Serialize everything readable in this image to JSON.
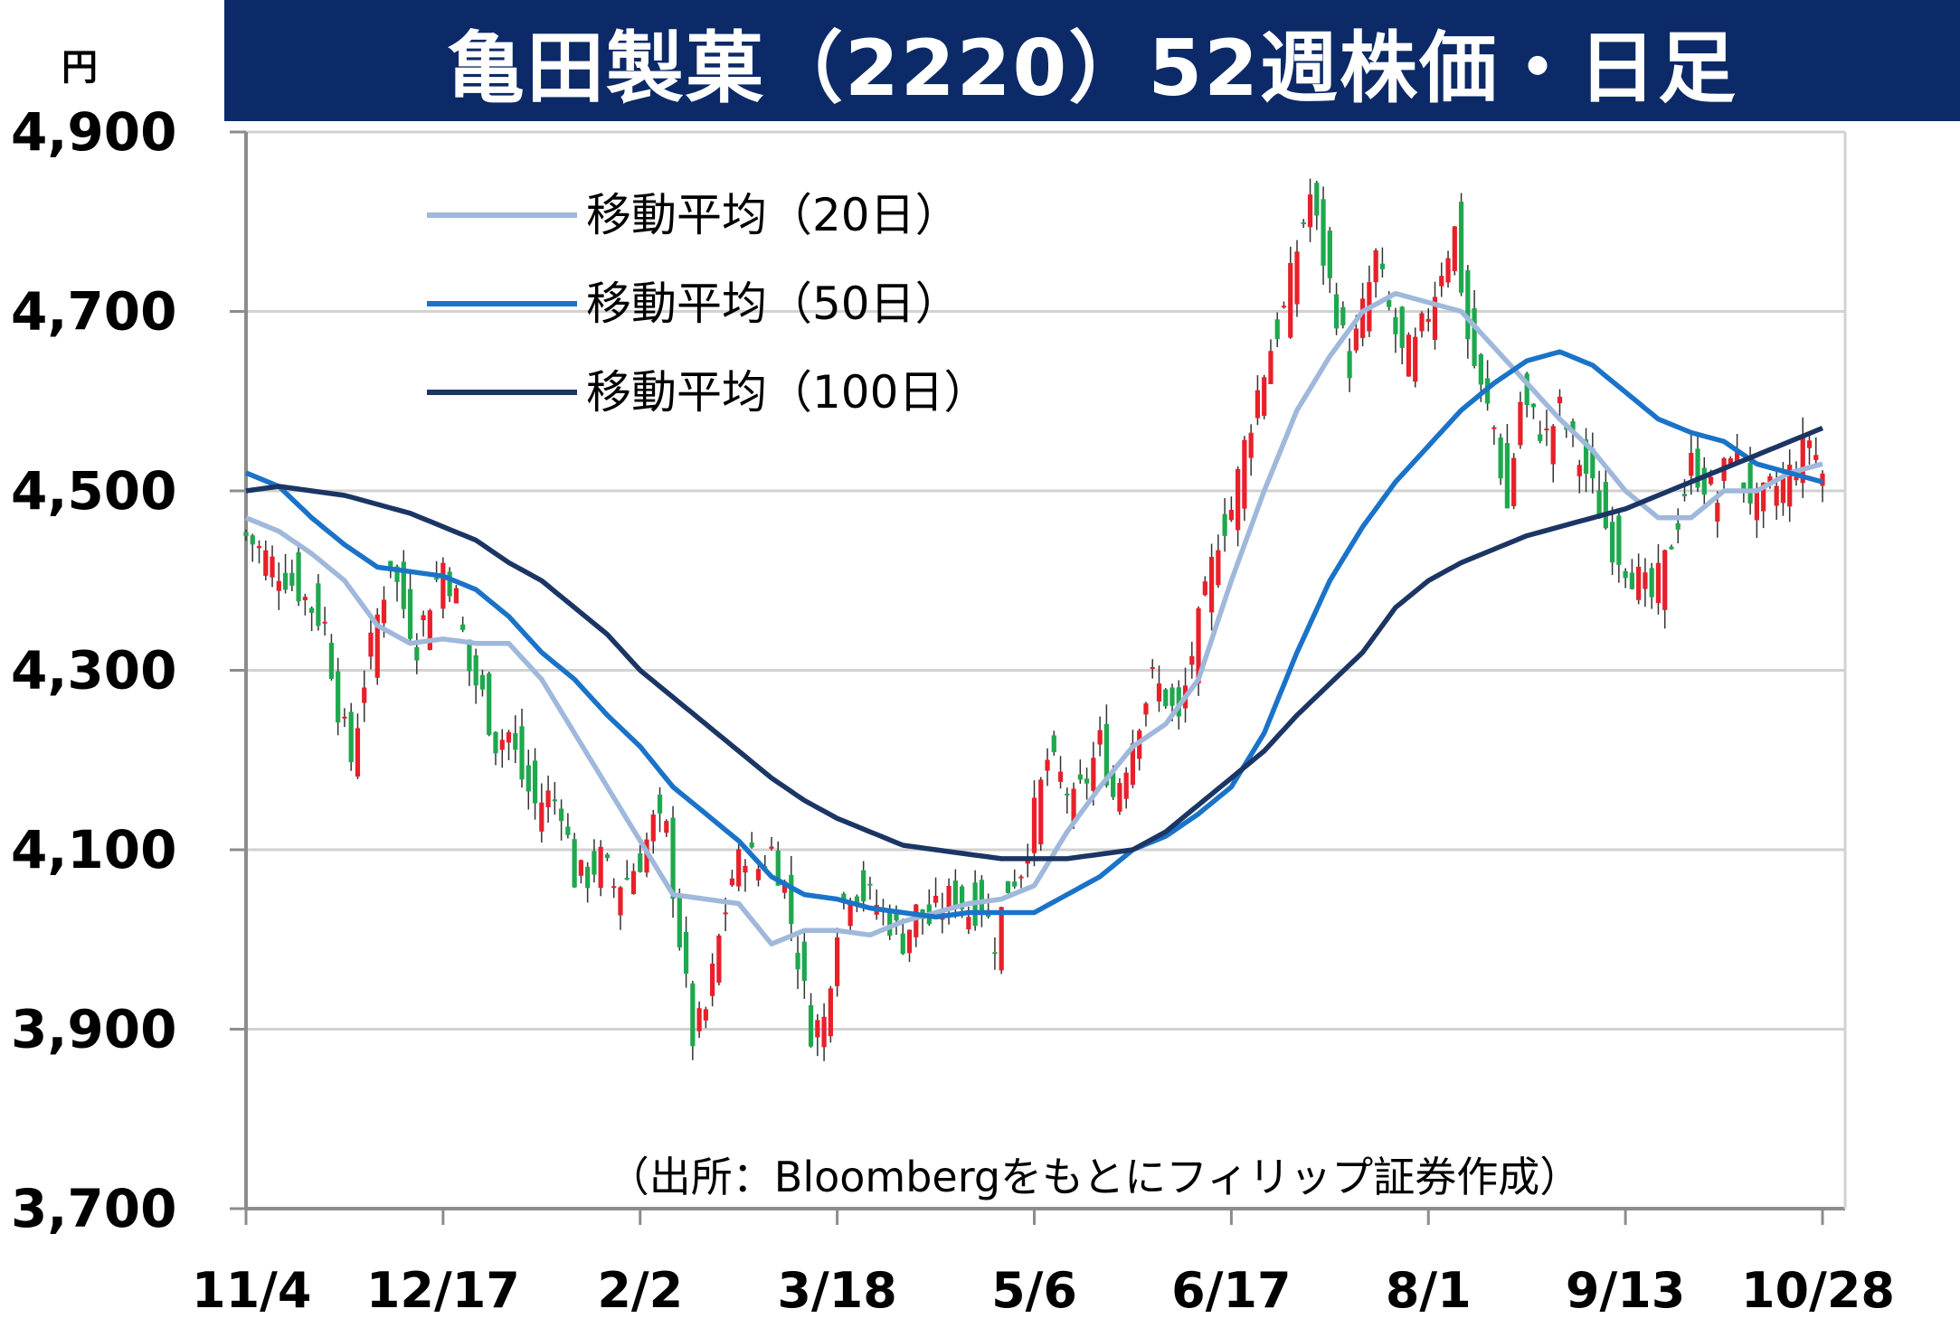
{
  "title": "亀田製菓（2220）52週株価・日足",
  "chart_data": {
    "type": "candlestick",
    "title": "亀田製菓（2220）52週株価・日足",
    "yunit": "円",
    "ylim": [
      3700,
      4900
    ],
    "yticks": [
      "3,700",
      "3,900",
      "4,100",
      "4,300",
      "4,500",
      "4,700",
      "4,900"
    ],
    "ytick_values": [
      3700,
      3900,
      4100,
      4300,
      4500,
      4700,
      4900
    ],
    "xticks": [
      "11/4",
      "12/17",
      "2/2",
      "3/18",
      "5/6",
      "6/17",
      "8/1",
      "9/13",
      "10/28"
    ],
    "xtick_index": [
      0,
      30,
      60,
      90,
      120,
      150,
      180,
      210,
      240
    ],
    "n_days": 241,
    "grid": true,
    "up_color": "#e8202a",
    "down_color": "#1ea84e",
    "legend_position": "top-left",
    "series": [
      {
        "name": "移動平均（20日）",
        "color": "#9fb8db",
        "anchors": [
          [
            0,
            4470
          ],
          [
            5,
            4455
          ],
          [
            10,
            4430
          ],
          [
            15,
            4400
          ],
          [
            20,
            4350
          ],
          [
            25,
            4330
          ],
          [
            30,
            4335
          ],
          [
            35,
            4330
          ],
          [
            40,
            4330
          ],
          [
            45,
            4290
          ],
          [
            50,
            4230
          ],
          [
            55,
            4170
          ],
          [
            60,
            4110
          ],
          [
            65,
            4050
          ],
          [
            70,
            4045
          ],
          [
            75,
            4040
          ],
          [
            80,
            3995
          ],
          [
            85,
            4010
          ],
          [
            90,
            4010
          ],
          [
            95,
            4005
          ],
          [
            100,
            4020
          ],
          [
            105,
            4030
          ],
          [
            110,
            4040
          ],
          [
            115,
            4045
          ],
          [
            120,
            4060
          ],
          [
            125,
            4120
          ],
          [
            130,
            4170
          ],
          [
            135,
            4215
          ],
          [
            140,
            4240
          ],
          [
            145,
            4290
          ],
          [
            150,
            4400
          ],
          [
            155,
            4500
          ],
          [
            160,
            4590
          ],
          [
            165,
            4650
          ],
          [
            170,
            4700
          ],
          [
            175,
            4720
          ],
          [
            180,
            4710
          ],
          [
            185,
            4700
          ],
          [
            190,
            4660
          ],
          [
            195,
            4620
          ],
          [
            200,
            4580
          ],
          [
            205,
            4545
          ],
          [
            210,
            4500
          ],
          [
            215,
            4470
          ],
          [
            220,
            4470
          ],
          [
            225,
            4500
          ],
          [
            230,
            4500
          ],
          [
            235,
            4520
          ],
          [
            240,
            4530
          ]
        ]
      },
      {
        "name": "移動平均（50日）",
        "color": "#1a73c8",
        "anchors": [
          [
            0,
            4520
          ],
          [
            5,
            4505
          ],
          [
            10,
            4470
          ],
          [
            15,
            4440
          ],
          [
            20,
            4415
          ],
          [
            25,
            4410
          ],
          [
            30,
            4405
          ],
          [
            35,
            4390
          ],
          [
            40,
            4360
          ],
          [
            45,
            4320
          ],
          [
            50,
            4290
          ],
          [
            55,
            4250
          ],
          [
            60,
            4215
          ],
          [
            65,
            4170
          ],
          [
            70,
            4140
          ],
          [
            75,
            4110
          ],
          [
            80,
            4070
          ],
          [
            85,
            4050
          ],
          [
            90,
            4045
          ],
          [
            95,
            4035
          ],
          [
            100,
            4030
          ],
          [
            105,
            4025
          ],
          [
            110,
            4030
          ],
          [
            115,
            4030
          ],
          [
            120,
            4030
          ],
          [
            125,
            4050
          ],
          [
            130,
            4070
          ],
          [
            135,
            4100
          ],
          [
            140,
            4115
          ],
          [
            145,
            4140
          ],
          [
            150,
            4170
          ],
          [
            155,
            4230
          ],
          [
            160,
            4320
          ],
          [
            165,
            4400
          ],
          [
            170,
            4460
          ],
          [
            175,
            4510
          ],
          [
            180,
            4550
          ],
          [
            185,
            4590
          ],
          [
            190,
            4620
          ],
          [
            195,
            4645
          ],
          [
            200,
            4655
          ],
          [
            205,
            4640
          ],
          [
            210,
            4610
          ],
          [
            215,
            4580
          ],
          [
            220,
            4565
          ],
          [
            225,
            4555
          ],
          [
            230,
            4530
          ],
          [
            235,
            4520
          ],
          [
            240,
            4510
          ]
        ]
      },
      {
        "name": "移動平均（100日）",
        "color": "#1b3564",
        "anchors": [
          [
            0,
            4500
          ],
          [
            5,
            4505
          ],
          [
            10,
            4500
          ],
          [
            15,
            4495
          ],
          [
            20,
            4485
          ],
          [
            25,
            4475
          ],
          [
            30,
            4460
          ],
          [
            35,
            4445
          ],
          [
            40,
            4420
          ],
          [
            45,
            4400
          ],
          [
            50,
            4370
          ],
          [
            55,
            4340
          ],
          [
            60,
            4300
          ],
          [
            65,
            4270
          ],
          [
            70,
            4240
          ],
          [
            75,
            4210
          ],
          [
            80,
            4180
          ],
          [
            85,
            4155
          ],
          [
            90,
            4135
          ],
          [
            95,
            4120
          ],
          [
            100,
            4105
          ],
          [
            105,
            4100
          ],
          [
            110,
            4095
          ],
          [
            115,
            4090
          ],
          [
            120,
            4090
          ],
          [
            125,
            4090
          ],
          [
            130,
            4095
          ],
          [
            135,
            4100
          ],
          [
            140,
            4120
          ],
          [
            145,
            4150
          ],
          [
            150,
            4180
          ],
          [
            155,
            4210
          ],
          [
            160,
            4250
          ],
          [
            165,
            4285
          ],
          [
            170,
            4320
          ],
          [
            175,
            4370
          ],
          [
            180,
            4400
          ],
          [
            185,
            4420
          ],
          [
            190,
            4435
          ],
          [
            195,
            4450
          ],
          [
            200,
            4460
          ],
          [
            205,
            4470
          ],
          [
            210,
            4480
          ],
          [
            215,
            4495
          ],
          [
            220,
            4510
          ],
          [
            225,
            4525
          ],
          [
            230,
            4540
          ],
          [
            235,
            4555
          ],
          [
            240,
            4570
          ]
        ]
      }
    ],
    "close_anchors": [
      [
        0,
        4450
      ],
      [
        4,
        4420
      ],
      [
        8,
        4390
      ],
      [
        12,
        4350
      ],
      [
        14,
        4260
      ],
      [
        16,
        4200
      ],
      [
        18,
        4290
      ],
      [
        20,
        4360
      ],
      [
        22,
        4420
      ],
      [
        24,
        4370
      ],
      [
        26,
        4330
      ],
      [
        28,
        4380
      ],
      [
        30,
        4420
      ],
      [
        32,
        4380
      ],
      [
        34,
        4300
      ],
      [
        36,
        4270
      ],
      [
        38,
        4220
      ],
      [
        40,
        4230
      ],
      [
        42,
        4180
      ],
      [
        44,
        4150
      ],
      [
        46,
        4160
      ],
      [
        48,
        4150
      ],
      [
        50,
        4070
      ],
      [
        52,
        4070
      ],
      [
        54,
        4090
      ],
      [
        56,
        4060
      ],
      [
        58,
        4070
      ],
      [
        60,
        4090
      ],
      [
        62,
        4130
      ],
      [
        64,
        4120
      ],
      [
        66,
        4000
      ],
      [
        68,
        3890
      ],
      [
        70,
        3920
      ],
      [
        72,
        4000
      ],
      [
        74,
        4070
      ],
      [
        76,
        4100
      ],
      [
        78,
        4080
      ],
      [
        80,
        4100
      ],
      [
        82,
        4060
      ],
      [
        84,
        3980
      ],
      [
        86,
        3900
      ],
      [
        88,
        3910
      ],
      [
        90,
        4020
      ],
      [
        92,
        4060
      ],
      [
        94,
        4050
      ],
      [
        96,
        4040
      ],
      [
        98,
        4020
      ],
      [
        100,
        4000
      ],
      [
        102,
        4030
      ],
      [
        104,
        4020
      ],
      [
        106,
        4040
      ],
      [
        108,
        4050
      ],
      [
        110,
        4030
      ],
      [
        112,
        4040
      ],
      [
        114,
        4000
      ],
      [
        116,
        4060
      ],
      [
        118,
        4080
      ],
      [
        120,
        4140
      ],
      [
        122,
        4200
      ],
      [
        124,
        4180
      ],
      [
        126,
        4150
      ],
      [
        128,
        4180
      ],
      [
        130,
        4220
      ],
      [
        132,
        4160
      ],
      [
        134,
        4200
      ],
      [
        136,
        4250
      ],
      [
        138,
        4290
      ],
      [
        140,
        4270
      ],
      [
        142,
        4240
      ],
      [
        144,
        4320
      ],
      [
        146,
        4380
      ],
      [
        148,
        4450
      ],
      [
        150,
        4480
      ],
      [
        152,
        4550
      ],
      [
        154,
        4610
      ],
      [
        156,
        4660
      ],
      [
        158,
        4700
      ],
      [
        160,
        4770
      ],
      [
        162,
        4830
      ],
      [
        164,
        4760
      ],
      [
        166,
        4700
      ],
      [
        168,
        4640
      ],
      [
        170,
        4700
      ],
      [
        172,
        4760
      ],
      [
        174,
        4700
      ],
      [
        176,
        4650
      ],
      [
        178,
        4660
      ],
      [
        180,
        4700
      ],
      [
        182,
        4750
      ],
      [
        184,
        4790
      ],
      [
        186,
        4670
      ],
      [
        188,
        4610
      ],
      [
        190,
        4570
      ],
      [
        192,
        4480
      ],
      [
        194,
        4600
      ],
      [
        196,
        4580
      ],
      [
        198,
        4560
      ],
      [
        200,
        4590
      ],
      [
        202,
        4550
      ],
      [
        204,
        4520
      ],
      [
        206,
        4480
      ],
      [
        208,
        4440
      ],
      [
        210,
        4420
      ],
      [
        212,
        4400
      ],
      [
        214,
        4380
      ],
      [
        216,
        4420
      ],
      [
        218,
        4470
      ],
      [
        220,
        4530
      ],
      [
        222,
        4510
      ],
      [
        224,
        4490
      ],
      [
        226,
        4550
      ],
      [
        228,
        4510
      ],
      [
        230,
        4480
      ],
      [
        232,
        4500
      ],
      [
        234,
        4510
      ],
      [
        236,
        4530
      ],
      [
        238,
        4560
      ],
      [
        240,
        4520
      ]
    ]
  },
  "legend": [
    {
      "label": "移動平均（20日）",
      "color": "#9fb8db"
    },
    {
      "label": "移動平均（50日）",
      "color": "#1a73c8"
    },
    {
      "label": "移動平均（100日）",
      "color": "#1b3564"
    }
  ],
  "source": "（出所：Bloombergをもとにフィリップ証券作成）"
}
